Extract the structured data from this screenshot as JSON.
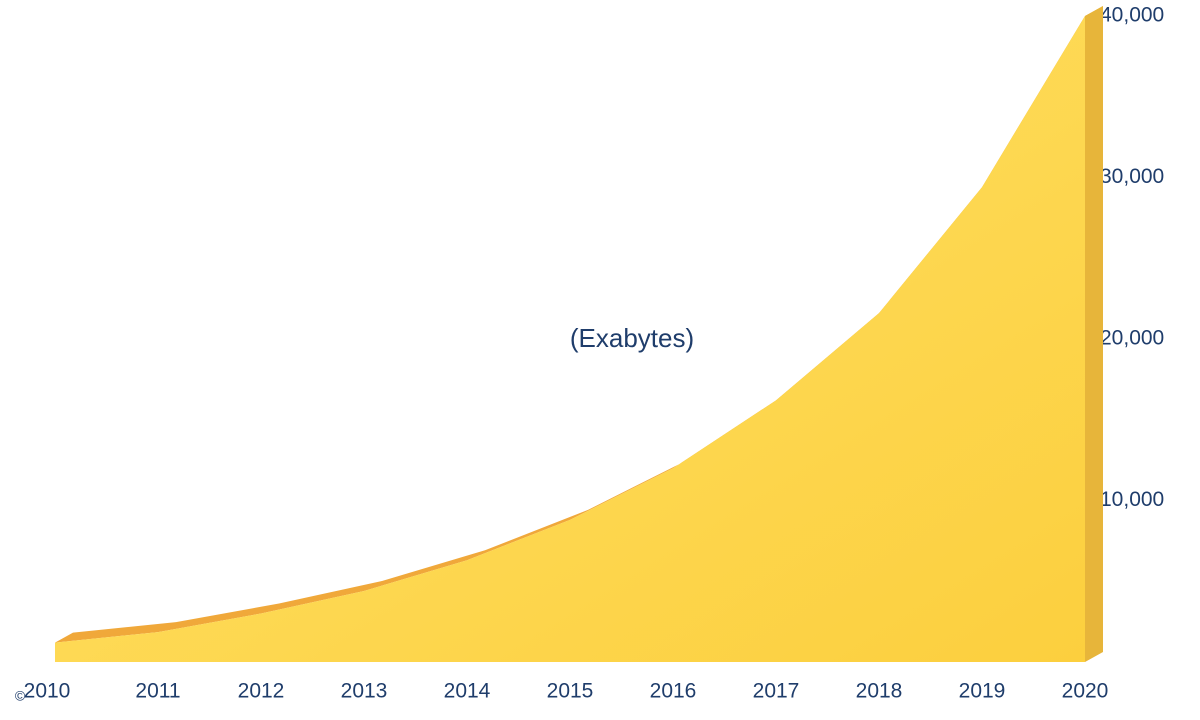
{
  "chart_data": {
    "type": "area",
    "annotation": "(Exabytes)",
    "copyright": "©",
    "categories": [
      "2010",
      "2011",
      "2012",
      "2013",
      "2014",
      "2015",
      "2016",
      "2017",
      "2018",
      "2019",
      "2020"
    ],
    "values": [
      1200,
      1850,
      3000,
      4400,
      6300,
      8800,
      12000,
      16200,
      21600,
      29400,
      40000
    ],
    "color": "#ffd84a",
    "edge_color": "#f0a83a",
    "ylim": [
      0,
      40000
    ],
    "yticks": [
      {
        "value": 10000,
        "label": "10,000"
      },
      {
        "value": 20000,
        "label": "20,000"
      },
      {
        "value": 30000,
        "label": "30,000"
      },
      {
        "value": 40000,
        "label": "40,000"
      }
    ],
    "y_axis_side": "right",
    "grid": false
  }
}
